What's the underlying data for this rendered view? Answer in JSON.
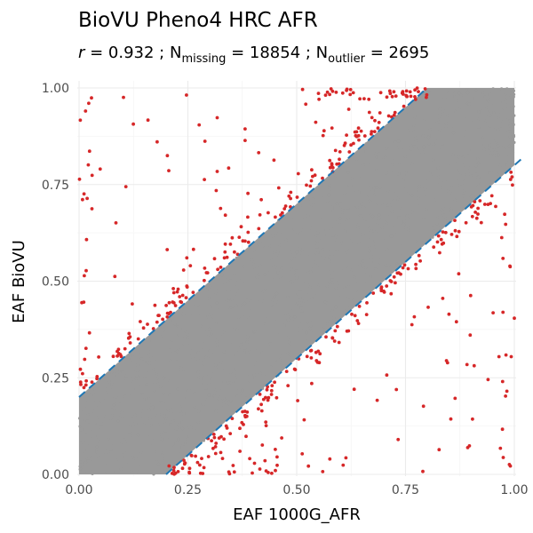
{
  "chart_data": {
    "type": "scatter",
    "title": "BioVU Pheno4 HRC AFR",
    "subtitle": {
      "r_symbol": "r",
      "r_value": " = 0.932 ; N",
      "missing_sub": "missing",
      "missing_value": " = 18854 ; N",
      "outlier_sub": "outlier",
      "outlier_value": " = 2695"
    },
    "xlabel": "EAF 1000G_AFR",
    "ylabel": "EAF BioVU",
    "xlim": [
      0,
      1
    ],
    "ylim": [
      0,
      1
    ],
    "x_ticks": [
      "0.00",
      "0.25",
      "0.50",
      "0.75",
      "1.00"
    ],
    "y_ticks": [
      "0.00",
      "0.25",
      "0.50",
      "0.75",
      "1.00"
    ],
    "grid": true,
    "reference_lines": [
      {
        "intercept": 0.2,
        "slope": 1,
        "style": "dashed"
      },
      {
        "intercept": -0.2,
        "slope": 1,
        "style": "dashed"
      }
    ],
    "series": [
      {
        "name": "",
        "role": "inlier-band",
        "band_halfwidth": 0.2
      },
      {
        "name": "",
        "role": "outlier",
        "count": 2695
      }
    ],
    "colors": {
      "inlier": "#999999",
      "outlier": "#d62728",
      "reference_line": "#1f77b4",
      "grid_major": "#ebebeb",
      "grid_minor": "#f5f5f5"
    }
  }
}
